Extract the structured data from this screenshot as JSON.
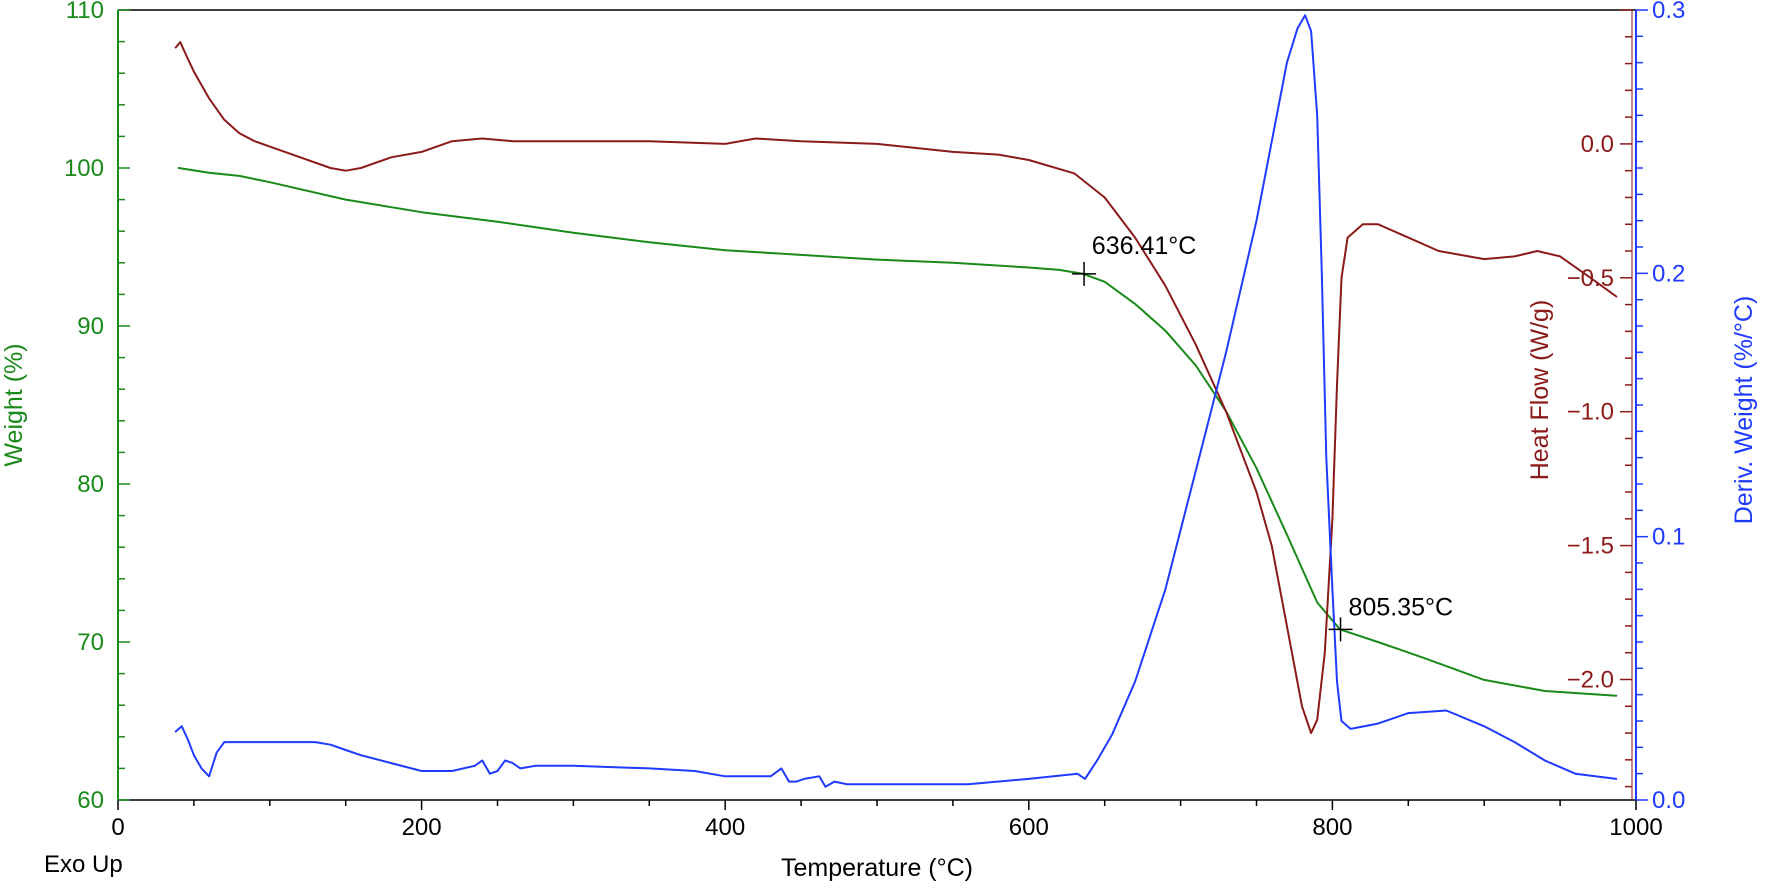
{
  "chart_data": {
    "type": "line",
    "xlabel": "Temperature (°C)",
    "corner_label": "Exo Up",
    "colors": {
      "weight": "#1a8a1a",
      "heat": "#8b1a1a",
      "deriv": "#1f3bff",
      "frame": "#000000"
    },
    "x_axis": {
      "lim": [
        0,
        1000
      ],
      "ticks": [
        0,
        200,
        400,
        600,
        800,
        1000
      ],
      "tick_labels": [
        "0",
        "200",
        "400",
        "600",
        "800",
        "1000"
      ]
    },
    "y_left": {
      "label": "Weight (%)",
      "lim": [
        60,
        110
      ],
      "ticks": [
        60,
        70,
        80,
        90,
        100,
        110
      ],
      "tick_labels": [
        "60",
        "70",
        "80",
        "90",
        "100",
        "110"
      ]
    },
    "y_heat": {
      "label": "Heat Flow (W/g)",
      "lim": [
        -2.45,
        0.5
      ],
      "ticks": [
        0.0,
        -0.5,
        -1.0,
        -1.5,
        -2.0
      ],
      "tick_labels": [
        "0.0",
        "−0.5",
        "−1.0",
        "−1.5",
        "−2.0"
      ]
    },
    "y_right": {
      "label": "Deriv. Weight (%/°C)",
      "lim": [
        0.0,
        0.3
      ],
      "ticks": [
        0.0,
        0.1,
        0.2,
        0.3
      ],
      "tick_labels": [
        "0.0",
        "0.1",
        "0.2",
        "0.3"
      ]
    },
    "series": [
      {
        "name": "Weight (%)",
        "axis": "y_left",
        "x": [
          40,
          60,
          80,
          100,
          150,
          200,
          250,
          300,
          350,
          400,
          450,
          500,
          550,
          600,
          620,
          636,
          650,
          670,
          690,
          710,
          730,
          750,
          770,
          790,
          805,
          830,
          860,
          900,
          940,
          987
        ],
        "y": [
          100.0,
          99.7,
          99.5,
          99.1,
          98.0,
          97.2,
          96.6,
          95.9,
          95.3,
          94.8,
          94.5,
          94.2,
          94.0,
          93.7,
          93.55,
          93.3,
          92.8,
          91.4,
          89.7,
          87.5,
          84.6,
          81.0,
          76.8,
          72.5,
          70.8,
          70.0,
          69.0,
          67.6,
          66.9,
          66.6
        ]
      },
      {
        "name": "Heat Flow (W/g)",
        "axis": "y_heat",
        "x": [
          38,
          41,
          45,
          50,
          60,
          70,
          80,
          90,
          100,
          120,
          140,
          150,
          160,
          180,
          200,
          220,
          240,
          260,
          300,
          350,
          400,
          420,
          450,
          500,
          550,
          580,
          600,
          630,
          650,
          670,
          690,
          710,
          730,
          750,
          760,
          770,
          780,
          786,
          790,
          795,
          800,
          803,
          806,
          810,
          820,
          830,
          850,
          870,
          900,
          920,
          935,
          950,
          970,
          987
        ],
        "y": [
          0.36,
          0.38,
          0.33,
          0.27,
          0.17,
          0.09,
          0.04,
          0.01,
          -0.01,
          -0.05,
          -0.09,
          -0.1,
          -0.09,
          -0.05,
          -0.03,
          0.01,
          0.02,
          0.01,
          0.01,
          0.01,
          0.0,
          0.02,
          0.01,
          0.0,
          -0.03,
          -0.04,
          -0.06,
          -0.11,
          -0.2,
          -0.35,
          -0.53,
          -0.75,
          -1.0,
          -1.3,
          -1.5,
          -1.8,
          -2.1,
          -2.2,
          -2.15,
          -1.9,
          -1.4,
          -0.9,
          -0.5,
          -0.35,
          -0.3,
          -0.3,
          -0.35,
          -0.4,
          -0.43,
          -0.42,
          -0.4,
          -0.42,
          -0.5,
          -0.57
        ]
      },
      {
        "name": "Deriv. Weight (%/°C)",
        "axis": "y_right",
        "x": [
          38,
          42,
          46,
          50,
          55,
          60,
          65,
          70,
          80,
          100,
          130,
          140,
          150,
          160,
          180,
          200,
          220,
          235,
          240,
          245,
          250,
          255,
          260,
          265,
          275,
          300,
          350,
          380,
          400,
          430,
          437,
          442,
          447,
          452,
          462,
          466,
          472,
          480,
          520,
          560,
          600,
          632,
          637,
          645,
          655,
          670,
          690,
          710,
          730,
          750,
          760,
          770,
          777,
          782,
          786,
          790,
          793,
          796,
          800,
          803,
          806,
          812,
          830,
          850,
          875,
          900,
          920,
          940,
          960,
          987
        ],
        "y": [
          0.026,
          0.028,
          0.023,
          0.017,
          0.012,
          0.009,
          0.018,
          0.022,
          0.022,
          0.022,
          0.022,
          0.021,
          0.019,
          0.017,
          0.014,
          0.011,
          0.011,
          0.013,
          0.015,
          0.01,
          0.011,
          0.015,
          0.014,
          0.012,
          0.013,
          0.013,
          0.012,
          0.011,
          0.009,
          0.009,
          0.012,
          0.007,
          0.007,
          0.008,
          0.009,
          0.005,
          0.007,
          0.006,
          0.006,
          0.006,
          0.008,
          0.01,
          0.008,
          0.015,
          0.025,
          0.045,
          0.08,
          0.125,
          0.17,
          0.22,
          0.25,
          0.28,
          0.293,
          0.298,
          0.292,
          0.26,
          0.2,
          0.13,
          0.08,
          0.045,
          0.03,
          0.027,
          0.029,
          0.033,
          0.034,
          0.028,
          0.022,
          0.015,
          0.01,
          0.008
        ]
      }
    ],
    "annotations": [
      {
        "text": "636.41°C",
        "x": 636.41,
        "y": 93.3,
        "axis": "y_left"
      },
      {
        "text": "805.35°C",
        "x": 805.35,
        "y": 70.8,
        "axis": "y_left"
      }
    ],
    "grid": false,
    "legend": "none"
  }
}
